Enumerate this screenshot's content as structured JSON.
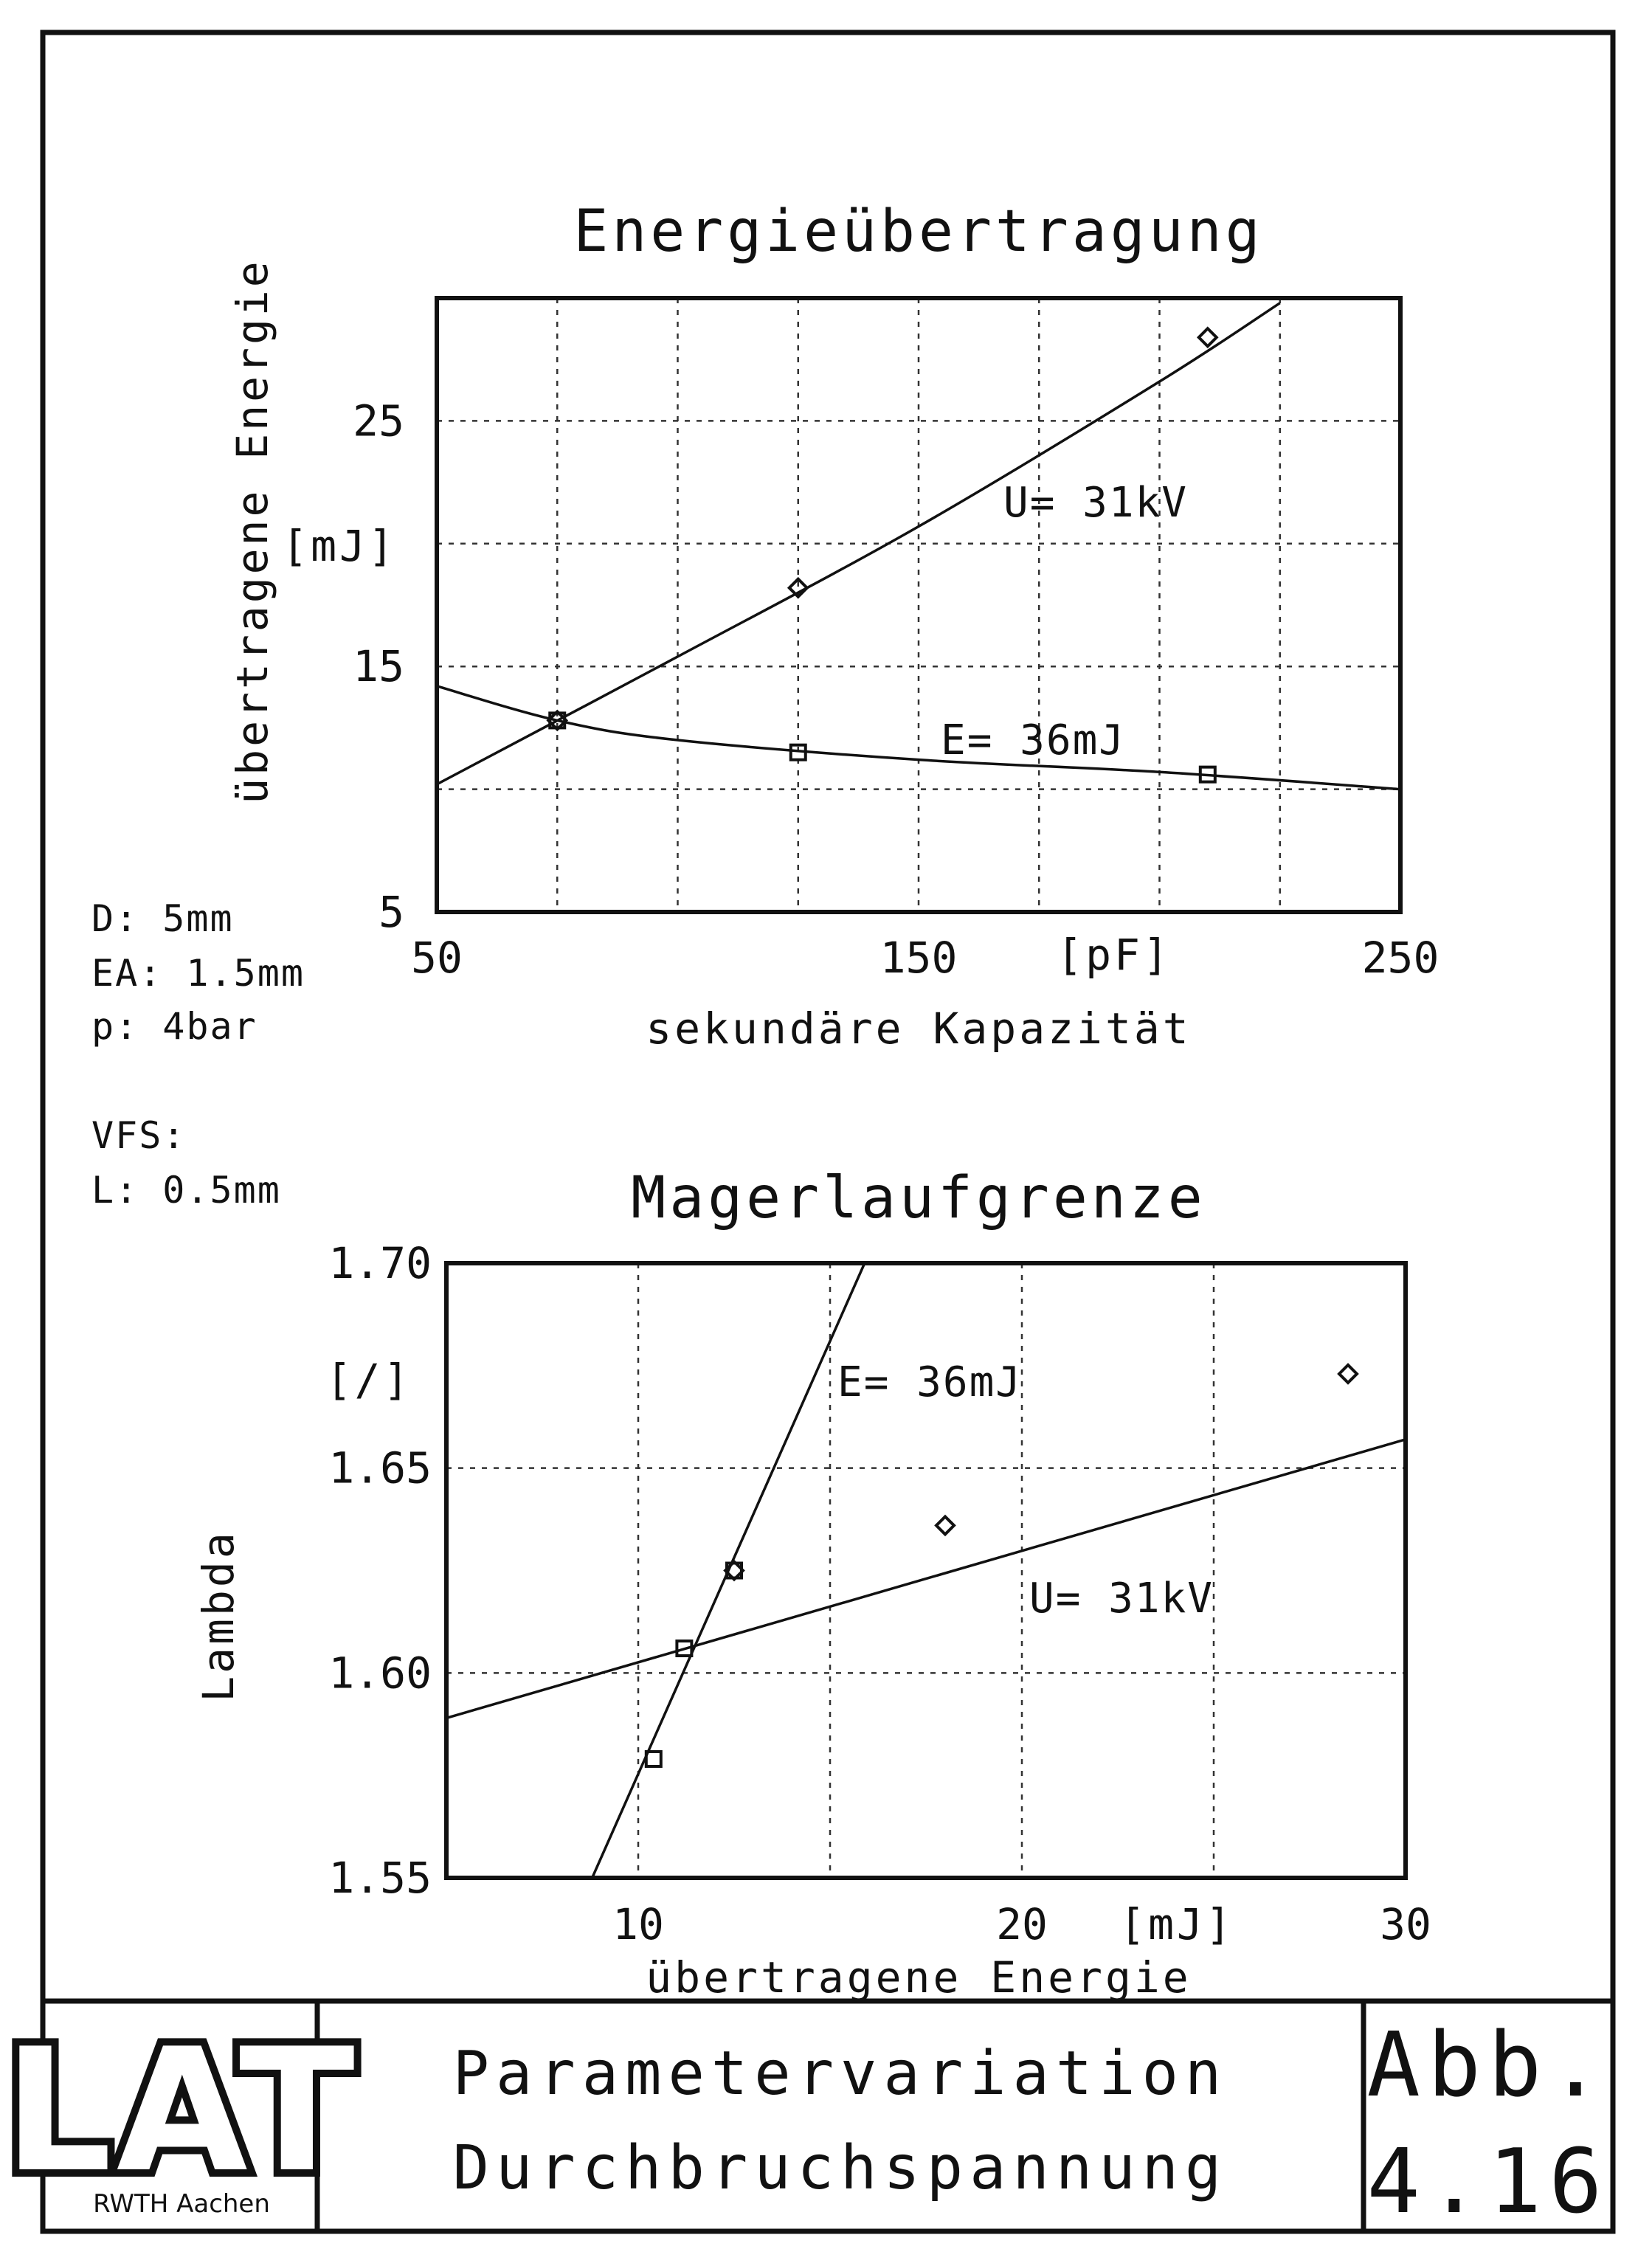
{
  "params": {
    "lines": [
      "D: 5mm",
      "EA: 1.5mm",
      "p: 4bar"
    ],
    "vfs_lines": [
      "VFS:",
      "L: 0.5mm"
    ]
  },
  "footer": {
    "logo": "LAT",
    "institution": "RWTH Aachen",
    "title_line1": "Parametervariation",
    "title_line2": "Durchbruchspannung",
    "fig_label": "Abb.",
    "fig_number": "4.16"
  },
  "chart_data": [
    {
      "type": "line",
      "title": "Energieübertragung",
      "xlabel": "sekundäre Kapazität",
      "xunit": "[pF]",
      "ylabel": "übertragene Energie",
      "yunit": "[mJ]",
      "xlim": [
        50,
        250
      ],
      "ylim": [
        5,
        30
      ],
      "xticks": [
        50,
        150,
        250
      ],
      "yticks": [
        5,
        15,
        25
      ],
      "grid": true,
      "series": [
        {
          "name": "U= 31kV",
          "marker": "diamond",
          "points": [
            [
              75,
              12.8
            ],
            [
              125,
              18.2
            ],
            [
              210,
              28.4
            ]
          ],
          "fit": [
            [
              50,
              10.2
            ],
            [
              100,
              15.4
            ],
            [
              150,
              20.7
            ],
            [
              200,
              26.6
            ],
            [
              225,
              29.8
            ]
          ]
        },
        {
          "name": "E= 36mJ",
          "marker": "square",
          "points": [
            [
              75,
              12.8
            ],
            [
              125,
              11.5
            ],
            [
              210,
              10.6
            ]
          ],
          "fit": [
            [
              50,
              14.2
            ],
            [
              75,
              12.8
            ],
            [
              100,
              12.0
            ],
            [
              150,
              11.2
            ],
            [
              200,
              10.7
            ],
            [
              250,
              10.0
            ]
          ]
        }
      ]
    },
    {
      "type": "line",
      "title": "Magerlaufgrenze",
      "xlabel": "übertragene Energie",
      "xunit": "[mJ]",
      "ylabel": "Lambda",
      "yunit": "[/]",
      "xlim": [
        5,
        30
      ],
      "ylim": [
        1.55,
        1.7
      ],
      "xticks": [
        10,
        20,
        30
      ],
      "yticks": [
        1.55,
        1.6,
        1.65,
        1.7
      ],
      "grid": true,
      "series": [
        {
          "name": "E= 36mJ",
          "marker": "square",
          "points": [
            [
              10.4,
              1.579
            ],
            [
              11.2,
              1.606
            ],
            [
              12.5,
              1.625
            ]
          ],
          "fit": [
            [
              8.8,
              1.55
            ],
            [
              15.9,
              1.7
            ]
          ]
        },
        {
          "name": "U= 31kV",
          "marker": "diamond",
          "points": [
            [
              12.5,
              1.625
            ],
            [
              18,
              1.636
            ],
            [
              28.5,
              1.673
            ]
          ],
          "fit": [
            [
              5,
              1.589
            ],
            [
              30,
              1.657
            ]
          ]
        }
      ]
    }
  ]
}
